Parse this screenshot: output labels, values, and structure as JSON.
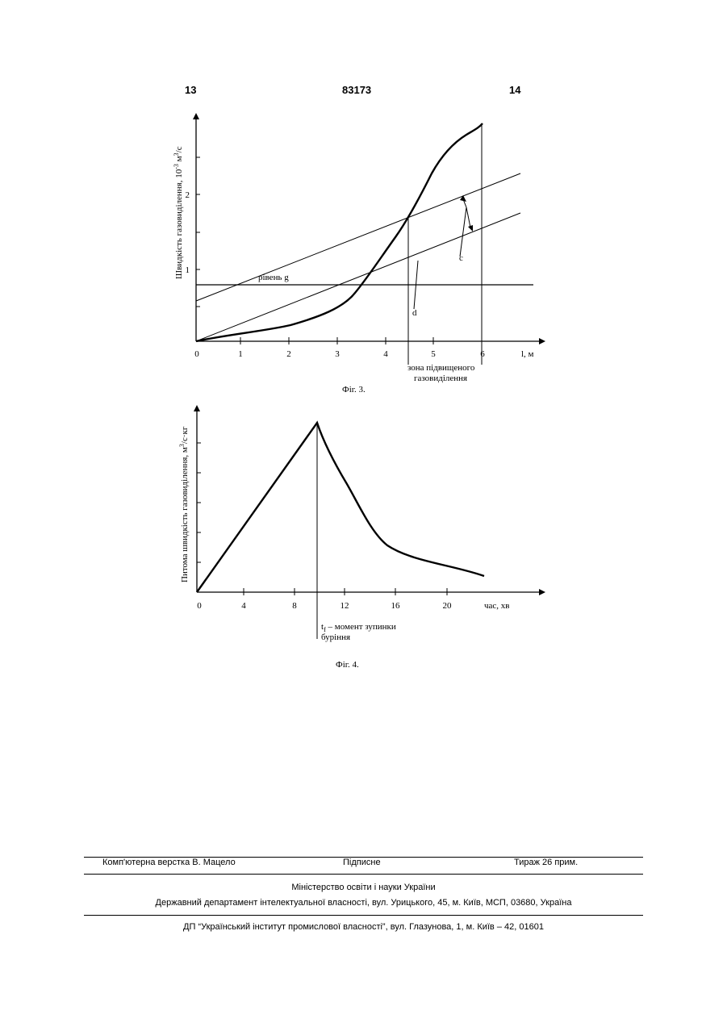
{
  "header": {
    "left_page": "13",
    "patent_number": "83173",
    "right_page": "14"
  },
  "fig3": {
    "caption": "Фіг. 3.",
    "ylabel": "Швидкість газовиділення, 10",
    "ylabel_sup": "-3",
    "ylabel_unit": " м",
    "ylabel_unit_sup": "3",
    "ylabel_tail": "/с",
    "xlabel": "l, м",
    "x_ticks": [
      "0",
      "1",
      "2",
      "3",
      "4",
      "5",
      "6"
    ],
    "y_ticks": [
      "1",
      "2"
    ],
    "level_label": "рівень g",
    "label_c": "с",
    "label_d": "d",
    "zone_line1": "зона підвищеного",
    "zone_line2": "газовиділення"
  },
  "fig4": {
    "caption": "Фіг. 4.",
    "ylabel": "Питома швидкість газовиділення, м",
    "ylabel_sup": "3",
    "ylabel_tail": "/с·кг",
    "xlabel": "час, хв",
    "x_ticks": [
      "0",
      "4",
      "8",
      "12",
      "16",
      "20"
    ],
    "tf_main": "t",
    "tf_sub": "f",
    "tf_text": " – момент зупинки",
    "tf_line2": "буріння"
  },
  "chart_data": [
    {
      "type": "line",
      "xlabel": "l, м",
      "ylabel": "Швидкість газовиділення, 10-3 м3/с",
      "xlim": [
        0,
        6.5
      ],
      "ylim": [
        0,
        3
      ],
      "series": [
        {
          "x": [
            0,
            1,
            2,
            3,
            3.5,
            4,
            4.5,
            5,
            5.5,
            6
          ],
          "y": [
            0,
            0.15,
            0.3,
            0.55,
            0.85,
            1.3,
            1.75,
            2.3,
            2.65,
            2.9
          ]
        },
        {
          "x": [
            0,
            6.5
          ],
          "y": [
            0.55,
            2.25
          ]
        },
        {
          "x": [
            0,
            6.5
          ],
          "y": [
            0,
            1.75
          ]
        },
        {
          "x": [
            0,
            6.5
          ],
          "y": [
            0.78,
            0.78
          ]
        }
      ]
    },
    {
      "type": "line",
      "xlabel": "час, хв",
      "ylabel": "Питома швидкість газовиділення, м3/с·кг",
      "xlim": [
        0,
        22
      ],
      "series": [
        {
          "x": [
            0,
            9.5,
            11,
            13,
            15,
            18,
            22.5
          ],
          "y": [
            0,
            2.35,
            1.6,
            1.05,
            0.72,
            0.5,
            0.3
          ]
        }
      ]
    }
  ],
  "footer": {
    "typesetter": "Комп'ютерна верстка В. Мацело",
    "signed": "Підписне",
    "circulation": "Тираж 26 прим.",
    "ministry": "Міністерство освіти і науки України",
    "department": "Державний департамент інтелектуальної власності, вул. Урицького, 45, м. Київ, МСП, 03680, Україна",
    "institute": "ДП “Український інститут промислової власності”, вул. Глазунова, 1, м. Київ – 42, 01601"
  }
}
